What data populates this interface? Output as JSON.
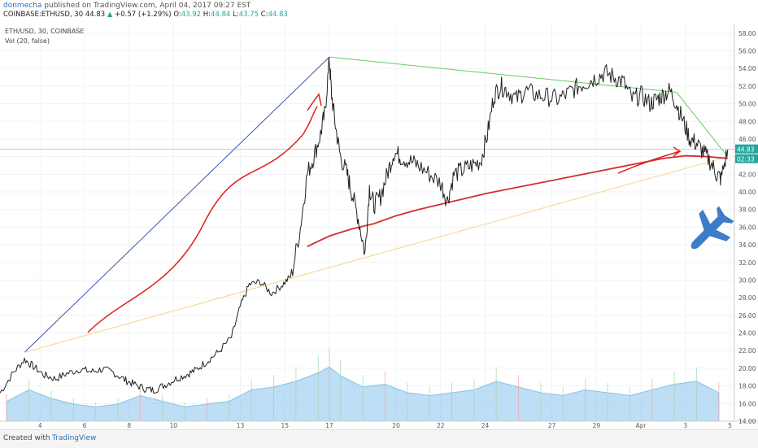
{
  "header": {
    "author": "donmecha",
    "published": "published on TradingView.com, April 04, 2017 09:27 EST",
    "symbol": "COINBASE:ETHUSD, 30",
    "last": "44.83",
    "change": "+0.57 (+1.29%)",
    "o_label": "O:",
    "o": "43.92",
    "h_label": "H:",
    "h": "44.84",
    "l_label": "L:",
    "l": "43.75",
    "c_label": "C:",
    "c": "44.83"
  },
  "legend": {
    "line1": "ETH/USD, 30, COINBASE",
    "line2": "Vol (20, false)"
  },
  "price_badge": "44.83",
  "time_badge": "02:33",
  "footer": {
    "created": "Created with",
    "brand": "TradingView"
  },
  "colors": {
    "price": "#222222",
    "ma": "#d32f2f",
    "trend_blue": "#3f51b5",
    "trend_green": "#66cc66",
    "trend_yellow": "#f7d48a",
    "volume": "#87c3eb",
    "badge_green": "#26a69a",
    "plane": "#3d7cc9"
  },
  "chart_data": {
    "type": "line",
    "symbol": "ETH/USD",
    "interval": "30",
    "exchange": "COINBASE",
    "y_ticks": [
      "14.00",
      "16.00",
      "18.00",
      "20.00",
      "22.00",
      "24.00",
      "26.00",
      "28.00",
      "30.00",
      "32.00",
      "34.00",
      "36.00",
      "38.00",
      "40.00",
      "42.00",
      "44.00",
      "46.00",
      "48.00",
      "50.00",
      "52.00",
      "54.00",
      "56.00",
      "58.00"
    ],
    "ylim": [
      14,
      59
    ],
    "x_ticks": [
      {
        "label": "4",
        "day": 4
      },
      {
        "label": "6",
        "day": 6
      },
      {
        "label": "8",
        "day": 8
      },
      {
        "label": "10",
        "day": 10
      },
      {
        "label": "13",
        "day": 13
      },
      {
        "label": "15",
        "day": 15
      },
      {
        "label": "17",
        "day": 17
      },
      {
        "label": "20",
        "day": 20
      },
      {
        "label": "22",
        "day": 22
      },
      {
        "label": "24",
        "day": 24
      },
      {
        "label": "27",
        "day": 27
      },
      {
        "label": "29",
        "day": 29
      },
      {
        "label": "Apr",
        "day": 31
      },
      {
        "label": "3",
        "day": 33
      },
      {
        "label": "5",
        "day": 35
      }
    ],
    "xlim": [
      2.2,
      35.2
    ],
    "price_series": {
      "x": [
        2.2,
        2.8,
        3.3,
        3.7,
        4.2,
        4.7,
        5.2,
        5.8,
        6.3,
        6.8,
        7.3,
        7.8,
        8.2,
        8.7,
        9.1,
        9.6,
        10.1,
        10.6,
        11.0,
        11.5,
        12.0,
        12.6,
        13.0,
        13.4,
        13.9,
        14.4,
        14.9,
        15.3,
        15.7,
        16.0,
        16.3,
        16.6,
        16.8,
        17.0,
        17.1,
        17.3,
        17.5,
        17.8,
        18.0,
        18.3,
        18.6,
        18.8,
        19.0,
        19.3,
        19.6,
        19.9,
        20.2,
        20.6,
        21.0,
        21.5,
        22.0,
        22.3,
        22.6,
        23.0,
        23.4,
        23.8,
        24.1,
        24.4,
        24.7,
        25.0,
        25.4,
        25.8,
        26.3,
        26.8,
        27.3,
        27.8,
        28.2,
        28.6,
        29.0,
        29.4,
        29.8,
        30.2,
        30.6,
        31.0,
        31.4,
        31.7,
        32.0,
        32.3,
        32.6,
        32.9,
        33.2,
        33.5,
        33.8,
        34.1,
        34.4,
        34.6,
        34.9
      ],
      "y": [
        17.2,
        19.5,
        21.0,
        20.2,
        19.2,
        18.8,
        19.4,
        19.9,
        19.6,
        19.9,
        19.5,
        18.7,
        18.2,
        17.7,
        17.5,
        18.1,
        18.8,
        19.3,
        19.8,
        20.8,
        21.8,
        23.5,
        27.0,
        29.5,
        29.8,
        28.5,
        29.5,
        30.5,
        36.0,
        42.0,
        44.0,
        46.5,
        49.0,
        55.0,
        51.0,
        47.0,
        44.0,
        42.0,
        40.0,
        37.0,
        33.0,
        40.5,
        38.5,
        39.5,
        42.0,
        44.5,
        44.0,
        43.5,
        43.0,
        42.0,
        41.0,
        39.0,
        42.0,
        42.5,
        43.0,
        43.5,
        46.5,
        51.0,
        52.0,
        51.5,
        50.5,
        51.5,
        51.0,
        50.8,
        50.5,
        51.3,
        52.0,
        52.5,
        53.0,
        53.5,
        53.0,
        52.5,
        50.5,
        51.0,
        50.0,
        50.5,
        51.0,
        51.5,
        50.0,
        48.0,
        46.0,
        45.5,
        44.5,
        43.5,
        42.0,
        41.5,
        44.8
      ]
    },
    "ma_series": {
      "name": "",
      "x": [
        16.0,
        17.0,
        18.0,
        19.0,
        20.0,
        21.0,
        22.0,
        23.0,
        24.0,
        25.0,
        26.0,
        27.0,
        28.0,
        29.0,
        30.0,
        31.0,
        32.0,
        33.0,
        34.0,
        34.9
      ],
      "y": [
        33.8,
        35.0,
        35.8,
        36.4,
        37.3,
        38.0,
        38.6,
        39.2,
        39.8,
        40.3,
        40.8,
        41.3,
        41.8,
        42.3,
        42.8,
        43.3,
        43.8,
        44.1,
        44.0,
        43.8
      ]
    },
    "volume_series": {
      "x": [
        2.5,
        3.5,
        4.5,
        5.5,
        6.5,
        7.5,
        8.5,
        9.5,
        10.5,
        11.5,
        12.5,
        13.5,
        14.5,
        15.5,
        16.5,
        17.0,
        17.5,
        18.5,
        19.5,
        20.5,
        21.5,
        22.5,
        23.5,
        24.5,
        25.5,
        26.5,
        27.5,
        28.5,
        29.5,
        30.5,
        31.5,
        32.5,
        33.5,
        34.5
      ],
      "y": [
        0.35,
        0.55,
        0.4,
        0.3,
        0.25,
        0.3,
        0.45,
        0.35,
        0.25,
        0.3,
        0.35,
        0.55,
        0.6,
        0.7,
        0.85,
        0.95,
        0.8,
        0.6,
        0.65,
        0.5,
        0.45,
        0.5,
        0.55,
        0.7,
        0.6,
        0.5,
        0.45,
        0.55,
        0.5,
        0.45,
        0.55,
        0.65,
        0.7,
        0.5
      ]
    },
    "last_price": 44.83
  }
}
